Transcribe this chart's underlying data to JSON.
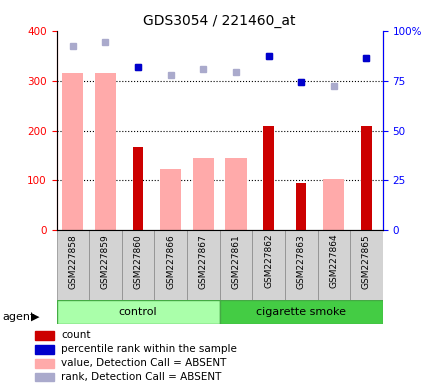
{
  "title": "GDS3054 / 221460_at",
  "samples": [
    "GSM227858",
    "GSM227859",
    "GSM227860",
    "GSM227866",
    "GSM227867",
    "GSM227861",
    "GSM227862",
    "GSM227863",
    "GSM227864",
    "GSM227865"
  ],
  "count_values": [
    null,
    null,
    168,
    null,
    null,
    null,
    210,
    95,
    null,
    210
  ],
  "value_absent": [
    315,
    315,
    null,
    122,
    145,
    145,
    null,
    null,
    103,
    null
  ],
  "rank_absent": [
    370,
    378,
    328,
    312,
    323,
    318,
    350,
    298,
    290,
    345
  ],
  "percentile_rank": [
    null,
    null,
    328,
    null,
    null,
    null,
    350,
    298,
    null,
    345
  ],
  "ylim_left": [
    0,
    400
  ],
  "yticks_left": [
    0,
    100,
    200,
    300,
    400
  ],
  "ytick_labels_right": [
    "0",
    "25",
    "50",
    "75",
    "100%"
  ],
  "color_count": "#cc0000",
  "color_percentile": "#0000cc",
  "color_value_absent": "#ffaaaa",
  "color_rank_absent": "#aaaacc",
  "control_color": "#aaffaa",
  "smoke_color": "#44cc44",
  "group_border_color": "#44aa44"
}
